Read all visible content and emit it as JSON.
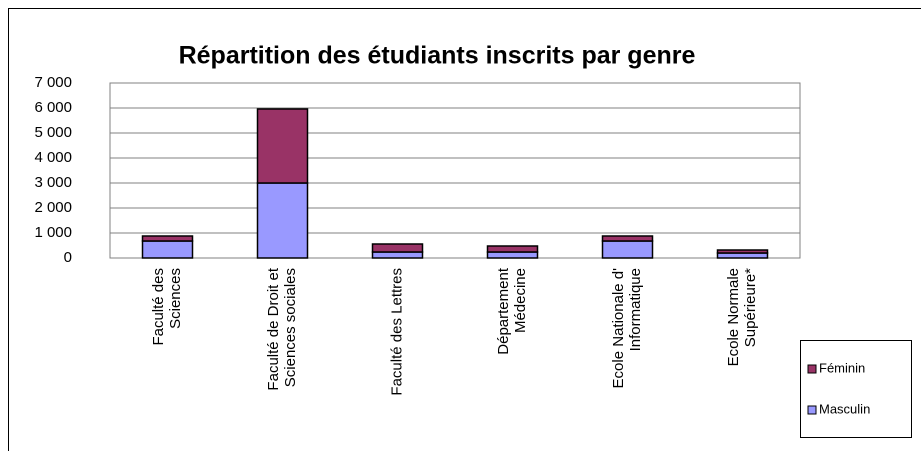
{
  "chart_data": {
    "type": "stacked_bar",
    "title": "Répartition des étudiants inscrits par genre",
    "categories": [
      "Faculté des\nSciences",
      "Faculté de Droit et\nSciences sociales",
      "Faculté des Lettres",
      "Département\nMédecine",
      "Ecole Nationale d'\nInformatique",
      "Ecole Normale\nSupérieure*"
    ],
    "series": [
      {
        "name": "Masculin",
        "color": "#9999ff",
        "values": [
          680,
          3000,
          240,
          240,
          680,
          200
        ]
      },
      {
        "name": "Féminin",
        "color": "#993366",
        "values": [
          200,
          2960,
          320,
          240,
          200,
          120
        ]
      }
    ],
    "ylim": [
      0,
      7000
    ],
    "yticks": [
      0,
      {
        "value": 1000,
        "label": "1 000"
      },
      {
        "value": 2000,
        "label": "2 000"
      },
      {
        "value": 3000,
        "label": "3 000"
      },
      {
        "value": 4000,
        "label": "4 000"
      },
      {
        "value": 5000,
        "label": "5 000"
      },
      {
        "value": 6000,
        "label": "6 000"
      },
      {
        "value": 7000,
        "label": "7 000"
      }
    ],
    "grid": true,
    "legend": "right"
  }
}
